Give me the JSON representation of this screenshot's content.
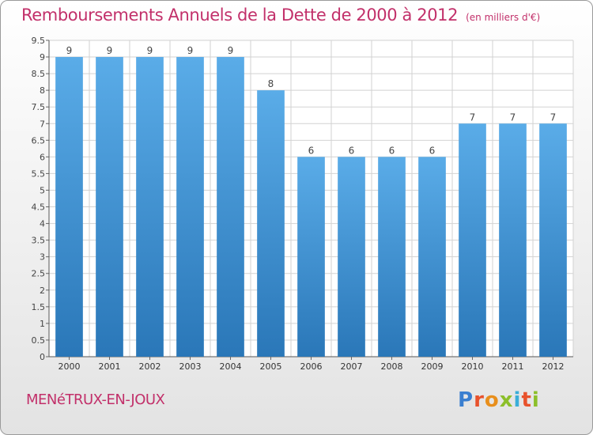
{
  "header": {
    "title": "Remboursements Annuels de la Dette de 2000 à 2012",
    "unit": "(en milliers d'€)"
  },
  "footer": {
    "place": "MENéTRUX-EN-JOUX",
    "logo_letters": [
      "P",
      "r",
      "o",
      "x",
      "i",
      "t",
      "i"
    ]
  },
  "colors": {
    "accent": "#c2306a",
    "bar_top": "#5aace8",
    "bar_bottom": "#2a77b8",
    "grid": "#d2d2d2"
  },
  "chart_data": {
    "type": "bar",
    "title": "Remboursements Annuels de la Dette de 2000 à 2012",
    "xlabel": "",
    "ylabel": "",
    "categories": [
      "2000",
      "2001",
      "2002",
      "2003",
      "2004",
      "2005",
      "2006",
      "2007",
      "2008",
      "2009",
      "2010",
      "2011",
      "2012"
    ],
    "values": [
      9,
      9,
      9,
      9,
      9,
      8,
      6,
      6,
      6,
      6,
      7,
      7,
      7
    ],
    "ylim": [
      0,
      9.5
    ],
    "yticks": [
      "0",
      "0.5",
      "1",
      "1.5",
      "2",
      "2.5",
      "3",
      "3.5",
      "4",
      "4.5",
      "5",
      "5.5",
      "6",
      "6.5",
      "7",
      "7.5",
      "8",
      "8.5",
      "9",
      "9.5"
    ],
    "grid": true
  }
}
